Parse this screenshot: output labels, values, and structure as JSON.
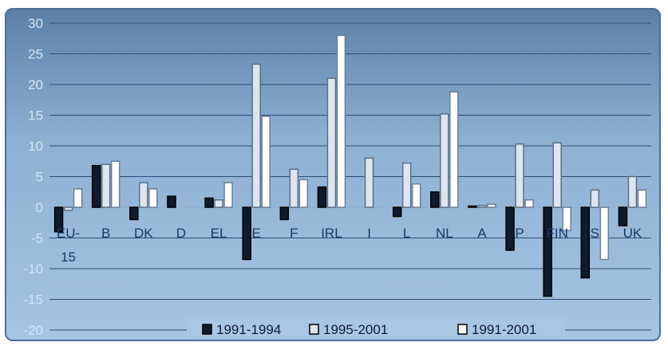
{
  "chart_data": {
    "type": "bar",
    "title": "",
    "xlabel": "",
    "ylabel": "",
    "ylim": [
      -20,
      30
    ],
    "yticks": [
      30,
      25,
      20,
      15,
      10,
      5,
      0,
      -5,
      -10,
      -15,
      -20
    ],
    "ytick_labels": [
      "30",
      "25",
      "20",
      "15",
      "10",
      "5",
      "0",
      "-5",
      "-10",
      "-15",
      "-20"
    ],
    "categories": [
      "EU-",
      "B",
      "DK",
      "D",
      "EL",
      "E",
      "F",
      "IRL",
      "I",
      "L",
      "NL",
      "A",
      "P",
      "FIN",
      "S",
      "UK"
    ],
    "category_sublabel": "15",
    "grid": true,
    "legend_position": "bottom",
    "series": [
      {
        "name": "1991-1994",
        "color": "#0d1b2e",
        "values": [
          -4,
          6.8,
          -2,
          1.8,
          1.5,
          -8.5,
          -2,
          3.3,
          0,
          -1.5,
          2.5,
          0.2,
          -7,
          -14.5,
          -11.5,
          -3
        ]
      },
      {
        "name": "1995-2001",
        "color": "#dde6f0",
        "values": [
          -0.5,
          7,
          4,
          0,
          1.2,
          23.3,
          6.2,
          21,
          8,
          7.2,
          15.2,
          0.3,
          10.3,
          10.5,
          2.8,
          5
        ]
      },
      {
        "name": "1991-2001",
        "color": "#ffffff",
        "values": [
          3,
          7.5,
          3,
          0,
          4,
          14.8,
          4.5,
          28,
          0,
          3.8,
          18.8,
          0.5,
          1.2,
          -3.8,
          -8.5,
          2.8
        ]
      }
    ]
  }
}
